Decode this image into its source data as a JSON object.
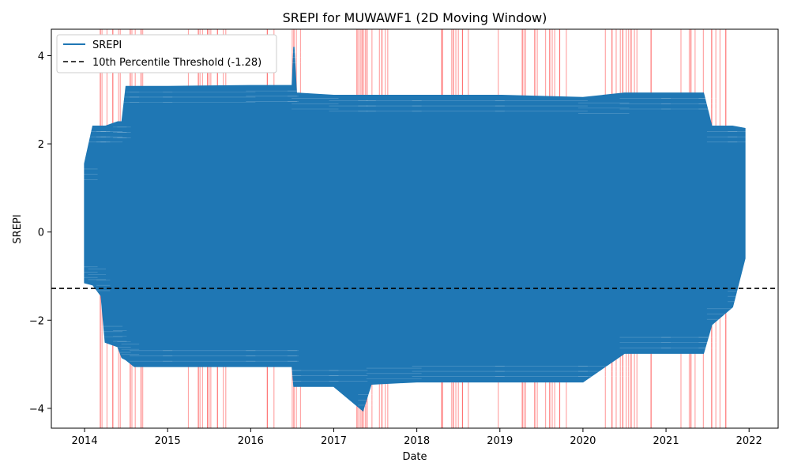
{
  "chart_data": {
    "type": "line",
    "title": "SREPI for MUWAWF1 (2D Moving Window)",
    "xlabel": "Date",
    "ylabel": "SREPI",
    "x_ticks": [
      "2014",
      "2015",
      "2016",
      "2017",
      "2018",
      "2019",
      "2020",
      "2021",
      "2022"
    ],
    "y_ticks": [
      "−4",
      "−2",
      "0",
      "2",
      "4"
    ],
    "xlim": [
      2013.6,
      2022.35
    ],
    "ylim": [
      -4.45,
      4.6
    ],
    "grid": false,
    "legend_position": "top-left",
    "series": [
      {
        "name": "SREPI",
        "color": "#1f77b4",
        "envelope_points": [
          {
            "x": 2014.0,
            "min": -1.15,
            "max": 1.55
          },
          {
            "x": 2014.1,
            "min": -1.2,
            "max": 2.4
          },
          {
            "x": 2014.2,
            "min": -1.45,
            "max": 2.4
          },
          {
            "x": 2014.25,
            "min": -2.5,
            "max": 2.4
          },
          {
            "x": 2014.4,
            "min": -2.6,
            "max": 2.5
          },
          {
            "x": 2014.45,
            "min": -2.85,
            "max": 2.5
          },
          {
            "x": 2014.5,
            "min": -2.9,
            "max": 3.3
          },
          {
            "x": 2014.6,
            "min": -3.05,
            "max": 3.3
          },
          {
            "x": 2015.0,
            "min": -3.05,
            "max": 3.3
          },
          {
            "x": 2016.0,
            "min": -3.05,
            "max": 3.32
          },
          {
            "x": 2016.5,
            "min": -3.05,
            "max": 3.32
          },
          {
            "x": 2016.52,
            "min": -3.5,
            "max": 4.2
          },
          {
            "x": 2016.55,
            "min": -3.5,
            "max": 3.15
          },
          {
            "x": 2017.0,
            "min": -3.5,
            "max": 3.1
          },
          {
            "x": 2017.35,
            "min": -4.05,
            "max": 3.1
          },
          {
            "x": 2017.45,
            "min": -3.45,
            "max": 3.1
          },
          {
            "x": 2018.0,
            "min": -3.4,
            "max": 3.1
          },
          {
            "x": 2019.0,
            "min": -3.4,
            "max": 3.1
          },
          {
            "x": 2020.0,
            "min": -3.4,
            "max": 3.05
          },
          {
            "x": 2020.5,
            "min": -2.75,
            "max": 3.15
          },
          {
            "x": 2021.0,
            "min": -2.75,
            "max": 3.15
          },
          {
            "x": 2021.45,
            "min": -2.75,
            "max": 3.15
          },
          {
            "x": 2021.55,
            "min": -2.1,
            "max": 2.4
          },
          {
            "x": 2021.8,
            "min": -1.7,
            "max": 2.4
          },
          {
            "x": 2021.95,
            "min": -0.6,
            "max": 2.35
          }
        ]
      },
      {
        "name": "10th Percentile Threshold (-1.28)",
        "color": "#000000",
        "dash": true,
        "y": -1.28
      }
    ],
    "highlight_color": "#ff0000",
    "highlight_dates": [
      2014.19,
      2014.21,
      2014.27,
      2014.34,
      2014.41,
      2014.43,
      2014.55,
      2014.57,
      2014.61,
      2014.68,
      2014.7,
      2015.25,
      2015.37,
      2015.39,
      2015.42,
      2015.48,
      2015.5,
      2015.52,
      2015.6,
      2015.67,
      2015.7,
      2016.2,
      2016.28,
      2016.5,
      2016.52,
      2016.55,
      2016.6,
      2017.28,
      2017.3,
      2017.32,
      2017.34,
      2017.36,
      2017.38,
      2017.4,
      2017.46,
      2017.55,
      2017.58,
      2017.62,
      2017.65,
      2018.3,
      2018.31,
      2018.42,
      2018.44,
      2018.47,
      2018.5,
      2018.55,
      2018.62,
      2018.98,
      2019.27,
      2019.29,
      2019.31,
      2019.42,
      2019.45,
      2019.55,
      2019.6,
      2019.63,
      2019.66,
      2019.72,
      2019.8,
      2020.27,
      2020.35,
      2020.4,
      2020.45,
      2020.48,
      2020.52,
      2020.55,
      2020.58,
      2020.62,
      2020.65,
      2020.82,
      2021.18,
      2021.28,
      2021.3,
      2021.35,
      2021.45,
      2021.55,
      2021.6,
      2021.65,
      2021.72
    ]
  }
}
